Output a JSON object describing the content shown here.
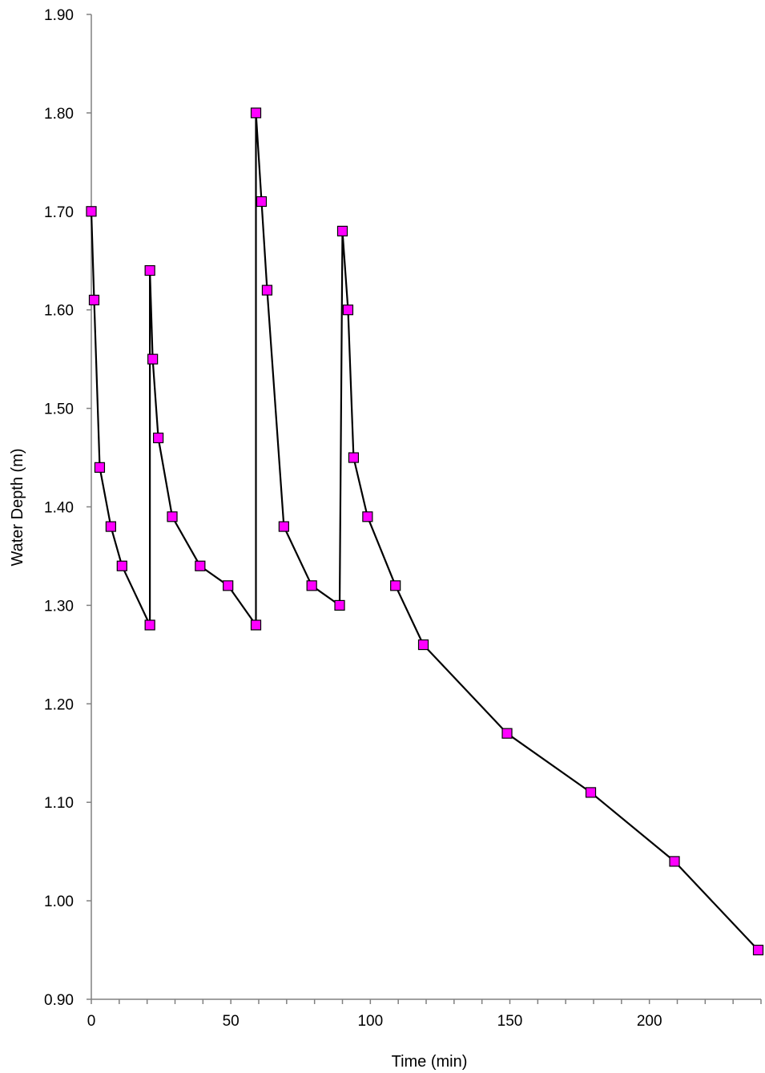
{
  "chart_data": {
    "type": "line",
    "title": "",
    "xlabel": "Time (min)",
    "ylabel": "Water Depth (m)",
    "xlim": [
      0,
      240
    ],
    "ylim": [
      0.9,
      1.9
    ],
    "x_ticks": [
      "0",
      "50",
      "100",
      "150",
      "200"
    ],
    "y_ticks": [
      "0.90",
      "1.00",
      "1.10",
      "1.20",
      "1.30",
      "1.40",
      "1.50",
      "1.60",
      "1.70",
      "1.80",
      "1.90"
    ],
    "grid": false,
    "legend": "none",
    "marker": "square",
    "marker_color": "#ff00ff",
    "line_color": "#000000",
    "series": [
      {
        "points": [
          [
            0,
            1.7
          ],
          [
            1,
            1.61
          ],
          [
            3,
            1.44
          ],
          [
            7,
            1.38
          ],
          [
            11,
            1.34
          ],
          [
            21,
            1.28
          ],
          [
            21,
            1.64
          ],
          [
            22,
            1.55
          ],
          [
            24,
            1.47
          ],
          [
            29,
            1.39
          ],
          [
            39,
            1.34
          ],
          [
            49,
            1.32
          ],
          [
            59,
            1.28
          ],
          [
            59,
            1.8
          ],
          [
            61,
            1.71
          ],
          [
            63,
            1.62
          ],
          [
            69,
            1.38
          ],
          [
            79,
            1.32
          ],
          [
            89,
            1.3
          ],
          [
            90,
            1.68
          ],
          [
            92,
            1.6
          ],
          [
            94,
            1.45
          ],
          [
            99,
            1.39
          ],
          [
            109,
            1.32
          ],
          [
            119,
            1.26
          ],
          [
            149,
            1.17
          ],
          [
            179,
            1.11
          ],
          [
            209,
            1.04
          ],
          [
            239,
            0.95
          ]
        ]
      }
    ]
  }
}
